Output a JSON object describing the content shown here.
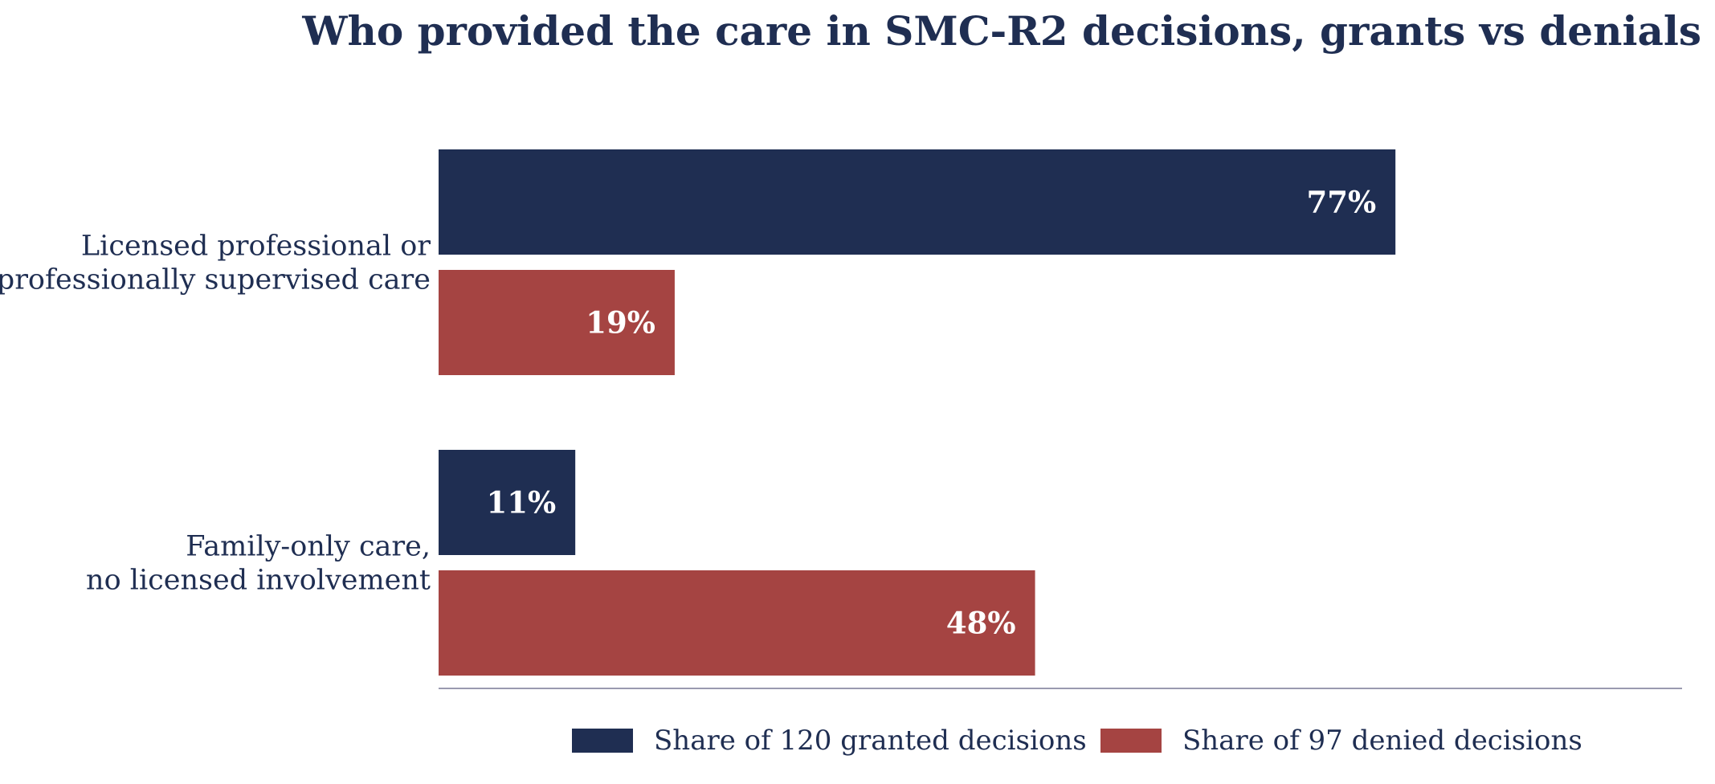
{
  "chart_data": {
    "type": "bar",
    "orientation": "horizontal",
    "title": "Who provided the care in SMC-R2 decisions, grants vs denials",
    "categories": [
      [
        "Licensed professional or",
        "professionally supervised care"
      ],
      [
        "Family-only care,",
        "no licensed involvement"
      ]
    ],
    "series": [
      {
        "name": "Share of 120 granted decisions",
        "color": "#1f2e52",
        "values": [
          77,
          11
        ],
        "labels": [
          "77%",
          "11%"
        ]
      },
      {
        "name": "Share of 97 denied decisions",
        "color": "#a54442",
        "values": [
          19,
          48
        ],
        "labels": [
          "19%",
          "48%"
        ]
      }
    ],
    "xlim": [
      0,
      100
    ],
    "grid": false,
    "legend_position": "bottom",
    "axis_color": "#9a9ab0"
  }
}
